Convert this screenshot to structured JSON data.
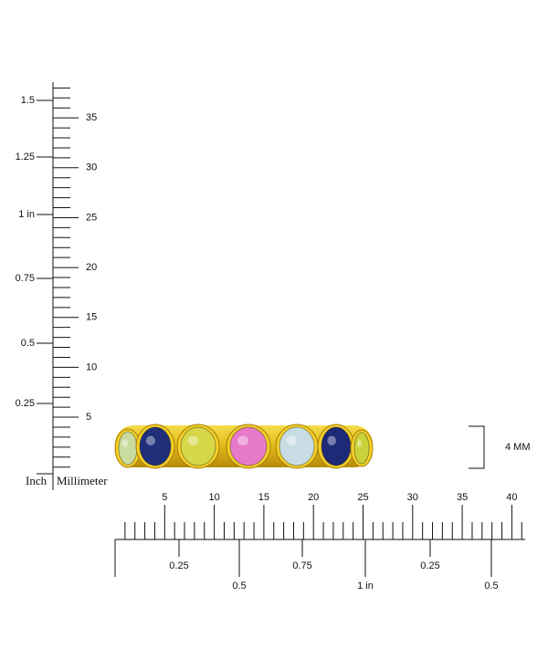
{
  "vertical_ruler": {
    "inch_labels": [
      "0.25",
      "0.5",
      "0.75",
      "1 in",
      "1.25",
      "1.5"
    ],
    "mm_labels": [
      "5",
      "10",
      "15",
      "20",
      "25",
      "30",
      "35"
    ],
    "inch_caption": "Inch",
    "mm_caption": "Millimeter"
  },
  "horizontal_ruler": {
    "mm_labels": [
      "5",
      "10",
      "15",
      "20",
      "25",
      "30",
      "35",
      "40"
    ],
    "inch_labels": [
      "0.25",
      "0.5",
      "0.75",
      "1 in",
      "0.25",
      "0.5"
    ]
  },
  "dimension_label": "4 MM"
}
